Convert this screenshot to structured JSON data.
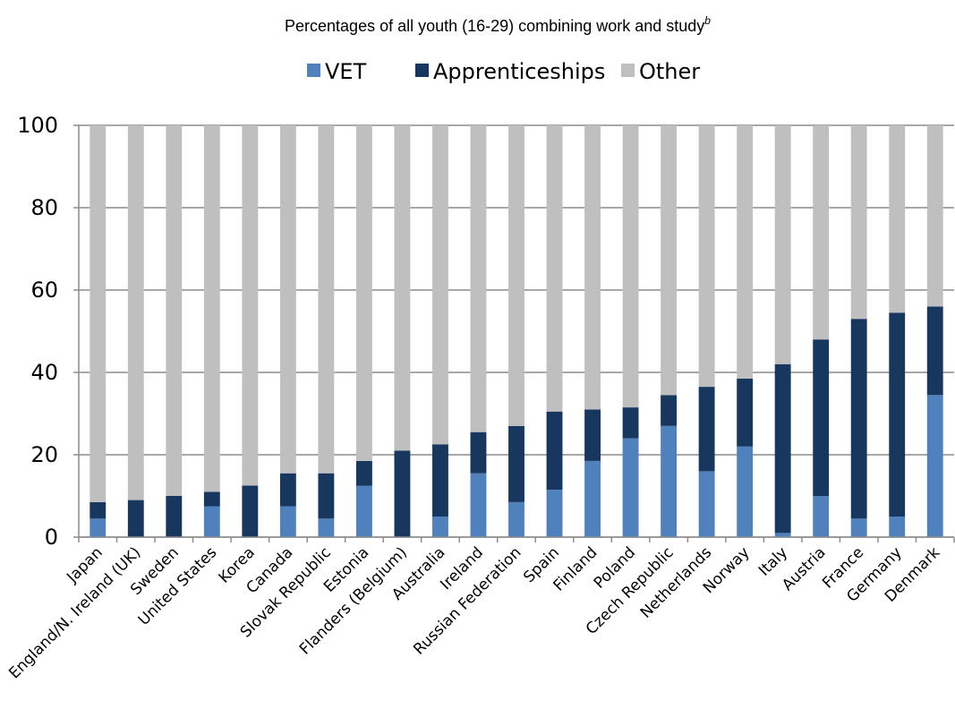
{
  "chart_data": {
    "type": "bar",
    "stacked": true,
    "title": "Percentages of all youth (16-29) combining work and study",
    "title_superscript": "b",
    "ylim": [
      0,
      100
    ],
    "yticks": [
      0,
      20,
      40,
      60,
      80,
      100
    ],
    "grid": true,
    "legend_position": "top",
    "categories": [
      "Japan",
      "England/N. Ireland (UK)",
      "Sweden",
      "United States",
      "Korea",
      "Canada",
      "Slovak Republic",
      "Estonia",
      "Flanders (Belgium)",
      "Australia",
      "Ireland",
      "Russian Federation",
      "Spain",
      "Finland",
      "Poland",
      "Czech Republic",
      "Netherlands",
      "Norway",
      "Italy",
      "Austria",
      "France",
      "Germany",
      "Denmark"
    ],
    "series": [
      {
        "name": "VET",
        "color": "#4f81bd",
        "values": [
          4.5,
          0,
          0,
          7.5,
          0,
          7.5,
          4.5,
          12.5,
          0,
          5,
          15.5,
          8.5,
          11.5,
          18.5,
          24,
          27,
          16,
          22,
          1,
          10,
          4.5,
          5,
          34.5
        ]
      },
      {
        "name": "Apprenticeships",
        "color": "#17375e",
        "values": [
          4,
          9,
          10,
          3.5,
          12.5,
          8,
          11,
          6,
          21,
          17.5,
          10,
          18.5,
          19,
          12.5,
          7.5,
          7.5,
          20.5,
          16.5,
          41,
          38,
          48.5,
          49.5,
          21.5
        ]
      },
      {
        "name": "Other",
        "color": "#bfbfbf",
        "values": [
          91.5,
          91,
          90,
          89,
          87.5,
          84.5,
          84.5,
          81.5,
          79,
          77.5,
          74.5,
          73,
          69.5,
          69,
          68.5,
          65.5,
          63.5,
          61.5,
          58,
          52,
          47,
          45.5,
          44
        ]
      }
    ]
  }
}
